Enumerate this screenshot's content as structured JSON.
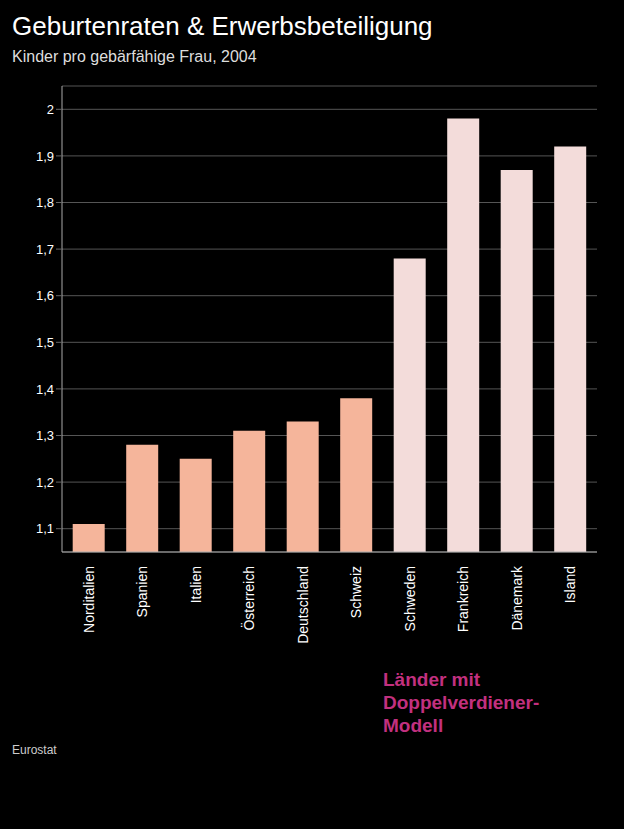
{
  "chart_data": {
    "type": "bar",
    "title": "Geburtenraten & Erwerbsbeteiligung",
    "subtitle": "Kinder pro gebärfähige Frau, 2004",
    "categories": [
      "Norditalien",
      "Spanien",
      "Italien",
      "Österreich",
      "Deutschland",
      "Schweiz",
      "Schweden",
      "Frankreich",
      "Dänemark",
      "Island"
    ],
    "values": [
      1.11,
      1.28,
      1.25,
      1.31,
      1.33,
      1.38,
      1.68,
      1.98,
      1.87,
      1.92
    ],
    "colors": [
      "#f5b59b",
      "#f5b59b",
      "#f5b59b",
      "#f5b59b",
      "#f5b59b",
      "#f5b59b",
      "#f3dcda",
      "#f3dcda",
      "#f3dcda",
      "#f3dcda"
    ],
    "ylim": [
      1.05,
      2.05
    ],
    "yticks": [
      {
        "value": 1.1,
        "label": "1,1"
      },
      {
        "value": 1.2,
        "label": "1,2"
      },
      {
        "value": 1.3,
        "label": "1,3"
      },
      {
        "value": 1.4,
        "label": "1,4"
      },
      {
        "value": 1.5,
        "label": "1,5"
      },
      {
        "value": 1.6,
        "label": "1,6"
      },
      {
        "value": 1.7,
        "label": "1,7"
      },
      {
        "value": 1.8,
        "label": "1,8"
      },
      {
        "value": 1.9,
        "label": "1,9"
      },
      2
    ],
    "grid": true,
    "annotation": "Länder mit Doppelverdiener-Modell",
    "source": "Eurostat"
  }
}
